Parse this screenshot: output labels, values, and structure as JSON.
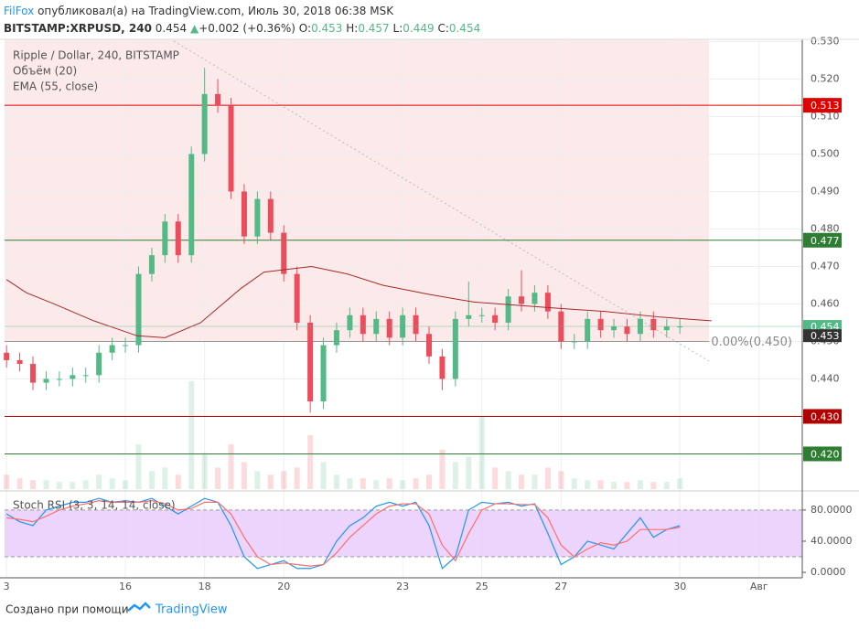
{
  "header": {
    "author": "FilFox",
    "published": "опубликовал(а) на TradingView.com, Июль 30, 2018 06:38 MSK",
    "symbol": "BITSTAMP:XRPUSD, 240",
    "price": "0.454",
    "arrow": "▲",
    "change": "+0.002 (+0.36%)",
    "o_label": "O:",
    "o": "0.453",
    "h_label": "H:",
    "h": "0.457",
    "l_label": "L:",
    "l": "0.449",
    "c_label": "C:",
    "c": "0.454"
  },
  "footer": {
    "text": "Создано при помощи",
    "brand": "TradingView"
  },
  "chart_data": [
    {
      "type": "candlestick",
      "legend": [
        "Ripple / Dollar, 240, BITSTAMP",
        "Объём (20)",
        "EMA (55, close)"
      ],
      "x": [
        13,
        13.333,
        13.667,
        14,
        14.333,
        14.667,
        15,
        15.333,
        15.667,
        16,
        16.333,
        16.667,
        17,
        17.333,
        17.667,
        18,
        18.333,
        18.667,
        19,
        19.333,
        19.667,
        20,
        20.333,
        20.667,
        21,
        21.333,
        21.667,
        22,
        22.333,
        22.667,
        23,
        23.333,
        23.667,
        24,
        24.333,
        24.667,
        25,
        25.333,
        25.667,
        26,
        26.333,
        26.667,
        27,
        27.333,
        27.667,
        28,
        28.333,
        28.667,
        29,
        29.333,
        29.667,
        30
      ],
      "open": [
        0.447,
        0.445,
        0.444,
        0.439,
        0.44,
        0.44,
        0.441,
        0.441,
        0.447,
        0.449,
        0.449,
        0.468,
        0.473,
        0.482,
        0.473,
        0.5,
        0.516,
        0.513,
        0.49,
        0.478,
        0.488,
        0.479,
        0.468,
        0.455,
        0.434,
        0.449,
        0.453,
        0.457,
        0.452,
        0.456,
        0.451,
        0.457,
        0.452,
        0.446,
        0.44,
        0.456,
        0.457,
        0.457,
        0.455,
        0.462,
        0.46,
        0.463,
        0.458,
        0.45,
        0.45,
        0.456,
        0.453,
        0.454,
        0.452,
        0.456,
        0.453,
        0.454
      ],
      "high": [
        0.449,
        0.447,
        0.446,
        0.442,
        0.442,
        0.443,
        0.443,
        0.449,
        0.451,
        0.451,
        0.47,
        0.475,
        0.484,
        0.484,
        0.502,
        0.523,
        0.52,
        0.515,
        0.492,
        0.49,
        0.49,
        0.481,
        0.47,
        0.457,
        0.451,
        0.455,
        0.459,
        0.459,
        0.458,
        0.458,
        0.459,
        0.459,
        0.454,
        0.448,
        0.458,
        0.466,
        0.459,
        0.459,
        0.464,
        0.469,
        0.465,
        0.465,
        0.46,
        0.452,
        0.458,
        0.458,
        0.456,
        0.456,
        0.458,
        0.458,
        0.456,
        0.456
      ],
      "low": [
        0.443,
        0.442,
        0.437,
        0.437,
        0.438,
        0.438,
        0.439,
        0.439,
        0.445,
        0.447,
        0.447,
        0.466,
        0.471,
        0.471,
        0.471,
        0.498,
        0.511,
        0.488,
        0.476,
        0.476,
        0.477,
        0.466,
        0.453,
        0.431,
        0.432,
        0.447,
        0.451,
        0.45,
        0.45,
        0.449,
        0.449,
        0.45,
        0.444,
        0.437,
        0.438,
        0.454,
        0.455,
        0.453,
        0.453,
        0.458,
        0.458,
        0.456,
        0.448,
        0.448,
        0.448,
        0.451,
        0.451,
        0.45,
        0.45,
        0.451,
        0.451,
        0.452
      ],
      "close": [
        0.445,
        0.444,
        0.439,
        0.44,
        0.44,
        0.441,
        0.441,
        0.447,
        0.449,
        0.449,
        0.468,
        0.473,
        0.482,
        0.473,
        0.5,
        0.516,
        0.513,
        0.49,
        0.478,
        0.488,
        0.479,
        0.468,
        0.455,
        0.434,
        0.449,
        0.453,
        0.457,
        0.452,
        0.456,
        0.451,
        0.457,
        0.452,
        0.446,
        0.44,
        0.456,
        0.457,
        0.457,
        0.455,
        0.462,
        0.46,
        0.463,
        0.458,
        0.45,
        0.45,
        0.456,
        0.453,
        0.454,
        0.452,
        0.456,
        0.453,
        0.454,
        0.454
      ],
      "volume": [
        8,
        6,
        5,
        5,
        4,
        4,
        5,
        8,
        6,
        5,
        25,
        10,
        12,
        8,
        60,
        20,
        12,
        25,
        15,
        10,
        8,
        10,
        12,
        30,
        15,
        8,
        6,
        6,
        5,
        6,
        5,
        6,
        8,
        22,
        15,
        18,
        40,
        12,
        10,
        8,
        8,
        12,
        10,
        6,
        5,
        5,
        4,
        4,
        5,
        4,
        4,
        6
      ],
      "volume_lim": [
        0,
        250
      ],
      "up_color": "#53b987",
      "down_color": "#eb4d5c",
      "ema": {
        "x": [
          13,
          13.5,
          14.2,
          15.2,
          16.3,
          17,
          17.9,
          18.9,
          19.5,
          20.7,
          21.6,
          22.5,
          23.7,
          24.8,
          26.7,
          28.1,
          29.5,
          30.8
        ],
        "values": [
          0.4665,
          0.463,
          0.46,
          0.4555,
          0.4515,
          0.451,
          0.455,
          0.464,
          0.4685,
          0.47,
          0.468,
          0.465,
          0.4625,
          0.4605,
          0.459,
          0.458,
          0.4565,
          0.4555
        ],
        "color": "#a52a2a"
      },
      "xlim": [
        12.95,
        33.09
      ],
      "xticks": [
        {
          "value": 13,
          "label": "3"
        },
        16,
        18,
        20,
        23,
        25,
        27,
        30,
        {
          "value": 32,
          "label": "Авг"
        }
      ],
      "ylim": [
        0.4106,
        0.5306
      ],
      "yticks": [
        {
          "value": 0.53,
          "label": "0.530"
        },
        {
          "value": 0.52,
          "label": "0.520"
        },
        {
          "value": 0.51,
          "label": "0.510"
        },
        {
          "value": 0.5,
          "label": "0.500"
        },
        {
          "value": 0.49,
          "label": "0.490"
        },
        {
          "value": 0.48,
          "label": "0.480"
        },
        {
          "value": 0.47,
          "label": "0.470"
        },
        {
          "value": 0.46,
          "label": "0.460"
        },
        {
          "value": 0.45,
          "label": "0.450"
        },
        {
          "value": 0.44,
          "label": "0.440"
        }
      ],
      "levels": [
        {
          "value": 0.513,
          "label": "0.513",
          "color": "#e00000"
        },
        {
          "value": 0.477,
          "label": "0.477",
          "color": "#2e7d32"
        },
        {
          "value": 0.43,
          "label": "0.430",
          "color": "#b00000"
        },
        {
          "value": 0.42,
          "label": "0.420",
          "color": "#2e7d32"
        }
      ],
      "price_labels": [
        {
          "value": 0.454,
          "label": "0.454",
          "color": "#53b987"
        },
        {
          "value": 0.453,
          "label": "0.453",
          "color": "#333333"
        }
      ],
      "fib": {
        "value": 0.45,
        "label": "0.00%(0.450)"
      },
      "grid": true
    },
    {
      "type": "line",
      "title": "Stoch RSI (3, 3, 14, 14, close)",
      "x": [
        13,
        13.333,
        13.667,
        14,
        14.333,
        14.667,
        15,
        15.333,
        15.667,
        16,
        16.333,
        16.667,
        17,
        17.333,
        17.667,
        18,
        18.333,
        18.667,
        19,
        19.333,
        19.667,
        20,
        20.333,
        20.667,
        21,
        21.333,
        21.667,
        22,
        22.333,
        22.667,
        23,
        23.333,
        23.667,
        24,
        24.333,
        24.667,
        25,
        25.333,
        25.667,
        26,
        26.333,
        26.667,
        27,
        27.333,
        27.667,
        28,
        28.333,
        28.667,
        29,
        29.333,
        29.667,
        30
      ],
      "series": [
        {
          "color": "#2196f3",
          "values": [
            75,
            65,
            60,
            80,
            85,
            90,
            90,
            95,
            90,
            92,
            90,
            95,
            85,
            75,
            85,
            95,
            90,
            60,
            20,
            5,
            10,
            15,
            5,
            5,
            10,
            40,
            60,
            70,
            85,
            90,
            85,
            90,
            60,
            5,
            20,
            80,
            90,
            88,
            90,
            85,
            88,
            50,
            10,
            20,
            40,
            35,
            30,
            50,
            70,
            45,
            55,
            60
          ]
        },
        {
          "color": "#ff6d6d",
          "values": [
            70,
            68,
            65,
            72,
            80,
            85,
            88,
            92,
            90,
            90,
            90,
            92,
            88,
            80,
            82,
            90,
            90,
            75,
            45,
            20,
            10,
            12,
            10,
            8,
            10,
            25,
            45,
            60,
            75,
            85,
            88,
            88,
            75,
            35,
            15,
            50,
            80,
            88,
            88,
            87,
            87,
            70,
            35,
            20,
            30,
            38,
            35,
            40,
            55,
            55,
            55,
            58
          ]
        }
      ],
      "band": [
        20,
        80
      ],
      "ylim": [
        -7,
        101
      ],
      "yticks": [
        {
          "value": 80,
          "label": "80.0000"
        },
        {
          "value": 40,
          "label": "40.0000"
        },
        {
          "value": 0,
          "label": "0.0000"
        }
      ]
    }
  ]
}
